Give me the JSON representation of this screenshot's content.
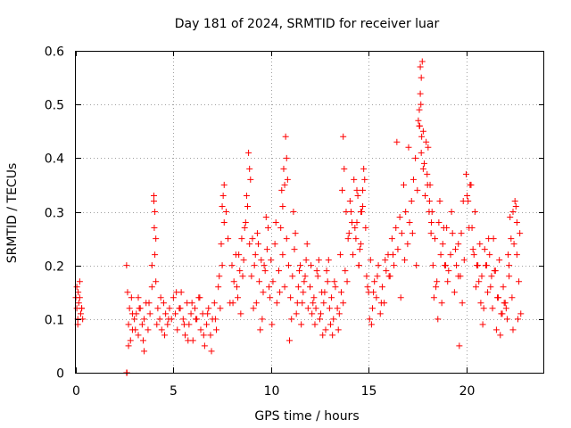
{
  "chart_data": {
    "type": "scatter",
    "title": "Day 181 of 2024, SRMTID for receiver luar",
    "xlabel": "GPS time / hours",
    "ylabel": "SRMTID / TECUs",
    "xlim": [
      0,
      24
    ],
    "ylim": [
      0,
      0.6
    ],
    "xticks": [
      0,
      5,
      10,
      15,
      20
    ],
    "xtick_labels": [
      "0",
      "5",
      "10",
      "15",
      "20"
    ],
    "yticks": [
      0,
      0.1,
      0.2,
      0.3,
      0.4,
      0.5,
      0.6
    ],
    "ytick_labels": [
      "0",
      "0.1",
      "0.2",
      "0.3",
      "0.4",
      "0.5",
      "0.6"
    ],
    "grid": true,
    "marker": "+",
    "color": "#ff0000",
    "series": [
      {
        "name": "SRMTID",
        "x": [
          0.0,
          0.05,
          0.1,
          0.12,
          0.15,
          0.2,
          0.25,
          0.3,
          0.35,
          0.05,
          0.1,
          0.2,
          0.3,
          2.6,
          2.65,
          2.7,
          2.75,
          2.8,
          2.85,
          2.9,
          3.0,
          3.1,
          3.2,
          3.3,
          3.4,
          3.5,
          3.6,
          3.7,
          3.8,
          3.9,
          4.0,
          4.05,
          4.1,
          4.2,
          4.3,
          4.4,
          4.5,
          4.6,
          4.7,
          4.8,
          4.9,
          2.7,
          2.9,
          3.2,
          3.5,
          3.9,
          4.0,
          4.02,
          4.05,
          4.1,
          3.05,
          3.25,
          3.45,
          3.75,
          4.15,
          4.35,
          4.55,
          4.75,
          5.0,
          5.1,
          5.2,
          5.3,
          5.4,
          5.5,
          5.6,
          5.7,
          5.8,
          5.9,
          6.0,
          6.1,
          6.2,
          6.3,
          6.4,
          6.5,
          6.6,
          6.7,
          6.8,
          6.9,
          7.0,
          7.1,
          7.2,
          7.3,
          7.4,
          7.5,
          7.6,
          7.7,
          7.8,
          7.9,
          5.15,
          5.35,
          5.55,
          5.75,
          5.95,
          6.15,
          6.35,
          6.55,
          6.75,
          6.95,
          7.15,
          7.35,
          7.45,
          7.5,
          7.55,
          7.6,
          8.0,
          8.1,
          8.2,
          8.3,
          8.4,
          8.5,
          8.6,
          8.7,
          8.8,
          8.9,
          9.0,
          9.1,
          9.2,
          9.3,
          9.4,
          9.5,
          9.6,
          9.7,
          9.8,
          9.9,
          8.05,
          8.25,
          8.45,
          8.65,
          8.75,
          8.85,
          8.9,
          8.95,
          9.15,
          9.35,
          9.55,
          9.75,
          9.95,
          8.35,
          8.55,
          9.05,
          9.25,
          9.45,
          9.65,
          9.85,
          10.0,
          10.1,
          10.2,
          10.3,
          10.4,
          10.5,
          10.6,
          10.7,
          10.8,
          10.9,
          11.0,
          11.1,
          11.2,
          11.3,
          11.4,
          11.5,
          11.6,
          11.7,
          11.8,
          11.9,
          10.05,
          10.25,
          10.45,
          10.55,
          10.65,
          10.75,
          10.8,
          10.85,
          10.95,
          11.05,
          11.15,
          11.25,
          11.45,
          11.65,
          11.85,
          10.6,
          10.7,
          11.35,
          11.55,
          11.75,
          12.0,
          12.1,
          12.2,
          12.3,
          12.4,
          12.5,
          12.6,
          12.7,
          12.8,
          12.9,
          13.0,
          13.1,
          13.2,
          13.3,
          13.4,
          13.5,
          13.6,
          13.7,
          13.8,
          13.9,
          12.05,
          12.25,
          12.45,
          12.65,
          12.85,
          13.05,
          13.25,
          13.45,
          13.55,
          13.65,
          13.7,
          13.75,
          13.85,
          13.95,
          12.15,
          12.35,
          12.55,
          12.75,
          12.95,
          13.15,
          14.0,
          14.1,
          14.2,
          14.3,
          14.4,
          14.5,
          14.6,
          14.7,
          14.8,
          14.9,
          15.0,
          15.1,
          15.2,
          15.3,
          15.4,
          15.5,
          15.6,
          15.7,
          15.8,
          15.9,
          14.05,
          14.15,
          14.25,
          14.35,
          14.45,
          14.55,
          14.65,
          14.75,
          14.85,
          14.95,
          15.05,
          15.25,
          15.45,
          15.65,
          15.85,
          14.6,
          14.7,
          14.4,
          14.5,
          15.15,
          16.0,
          16.1,
          16.2,
          16.3,
          16.4,
          16.5,
          16.6,
          16.7,
          16.8,
          16.9,
          17.0,
          17.1,
          17.2,
          17.3,
          17.4,
          17.5,
          17.6,
          17.7,
          17.8,
          17.9,
          16.05,
          16.25,
          16.45,
          16.65,
          16.85,
          17.05,
          17.25,
          17.45,
          17.55,
          17.65,
          17.7,
          17.75,
          17.8,
          17.85,
          17.95,
          17.6,
          17.62,
          17.65,
          17.68,
          17.72,
          18.0,
          18.1,
          18.2,
          18.3,
          18.4,
          18.5,
          18.6,
          18.7,
          18.8,
          18.9,
          19.0,
          19.1,
          19.2,
          19.3,
          19.4,
          19.5,
          19.6,
          19.7,
          19.8,
          19.9,
          18.05,
          18.15,
          18.25,
          18.35,
          18.45,
          18.55,
          18.65,
          18.75,
          18.85,
          18.95,
          19.05,
          19.25,
          19.45,
          19.65,
          19.75,
          19.85,
          18.02,
          18.12,
          18.22,
          19.6,
          20.0,
          20.1,
          20.2,
          20.3,
          20.4,
          20.5,
          20.6,
          20.7,
          20.8,
          20.9,
          21.0,
          21.1,
          21.2,
          21.3,
          21.4,
          21.5,
          21.6,
          21.7,
          21.8,
          21.9,
          20.05,
          20.15,
          20.25,
          20.35,
          20.45,
          20.55,
          20.65,
          20.75,
          20.85,
          20.95,
          21.05,
          21.15,
          21.25,
          21.35,
          21.45,
          21.55,
          21.65,
          21.75,
          21.85,
          21.95,
          22.0,
          22.1,
          22.2,
          22.3,
          22.4,
          22.5,
          22.6,
          22.7,
          22.8,
          22.05,
          22.15,
          22.25,
          22.35,
          22.45,
          22.55,
          22.65,
          22.75,
          22.2,
          22.4,
          22.6,
          2.6,
          2.62
        ],
        "y": [
          0.14,
          0.12,
          0.09,
          0.15,
          0.13,
          0.17,
          0.11,
          0.12,
          0.1,
          0.16,
          0.1,
          0.14,
          0.12,
          0.2,
          0.15,
          0.09,
          0.12,
          0.06,
          0.14,
          0.08,
          0.1,
          0.11,
          0.07,
          0.12,
          0.09,
          0.1,
          0.13,
          0.08,
          0.11,
          0.2,
          0.33,
          0.3,
          0.25,
          0.12,
          0.1,
          0.08,
          0.13,
          0.11,
          0.09,
          0.12,
          0.1,
          0.05,
          0.11,
          0.14,
          0.04,
          0.16,
          0.32,
          0.27,
          0.22,
          0.17,
          0.08,
          0.12,
          0.06,
          0.13,
          0.09,
          0.14,
          0.07,
          0.1,
          0.14,
          0.11,
          0.08,
          0.12,
          0.15,
          0.1,
          0.07,
          0.13,
          0.09,
          0.11,
          0.06,
          0.12,
          0.1,
          0.14,
          0.08,
          0.11,
          0.05,
          0.09,
          0.12,
          0.07,
          0.1,
          0.13,
          0.08,
          0.16,
          0.12,
          0.2,
          0.35,
          0.3,
          0.25,
          0.13,
          0.15,
          0.12,
          0.09,
          0.06,
          0.13,
          0.1,
          0.14,
          0.07,
          0.11,
          0.04,
          0.1,
          0.18,
          0.24,
          0.31,
          0.33,
          0.28,
          0.2,
          0.17,
          0.22,
          0.14,
          0.19,
          0.25,
          0.21,
          0.28,
          0.31,
          0.24,
          0.18,
          0.12,
          0.22,
          0.26,
          0.17,
          0.21,
          0.15,
          0.19,
          0.23,
          0.16,
          0.13,
          0.16,
          0.11,
          0.27,
          0.33,
          0.41,
          0.38,
          0.36,
          0.2,
          0.24,
          0.1,
          0.29,
          0.14,
          0.22,
          0.18,
          0.25,
          0.13,
          0.08,
          0.2,
          0.27,
          0.21,
          0.17,
          0.24,
          0.13,
          0.19,
          0.27,
          0.22,
          0.16,
          0.25,
          0.2,
          0.14,
          0.18,
          0.23,
          0.11,
          0.16,
          0.2,
          0.13,
          0.17,
          0.21,
          0.12,
          0.09,
          0.28,
          0.15,
          0.34,
          0.38,
          0.44,
          0.4,
          0.36,
          0.06,
          0.1,
          0.3,
          0.26,
          0.19,
          0.15,
          0.24,
          0.31,
          0.35,
          0.13,
          0.09,
          0.18,
          0.16,
          0.11,
          0.14,
          0.12,
          0.18,
          0.1,
          0.15,
          0.13,
          0.08,
          0.17,
          0.12,
          0.14,
          0.1,
          0.16,
          0.12,
          0.11,
          0.15,
          0.13,
          0.19,
          0.17,
          0.2,
          0.09,
          0.21,
          0.07,
          0.19,
          0.09,
          0.17,
          0.08,
          0.22,
          0.34,
          0.44,
          0.38,
          0.3,
          0.25,
          0.13,
          0.19,
          0.11,
          0.15,
          0.21,
          0.07,
          0.26,
          0.3,
          0.22,
          0.27,
          0.34,
          0.2,
          0.24,
          0.31,
          0.36,
          0.18,
          0.15,
          0.21,
          0.12,
          0.17,
          0.14,
          0.2,
          0.11,
          0.16,
          0.13,
          0.19,
          0.32,
          0.28,
          0.36,
          0.25,
          0.33,
          0.23,
          0.3,
          0.38,
          0.27,
          0.16,
          0.1,
          0.15,
          0.18,
          0.13,
          0.21,
          0.3,
          0.34,
          0.28,
          0.2,
          0.09,
          0.22,
          0.18,
          0.25,
          0.2,
          0.27,
          0.23,
          0.29,
          0.26,
          0.35,
          0.3,
          0.24,
          0.28,
          0.32,
          0.36,
          0.4,
          0.34,
          0.46,
          0.41,
          0.38,
          0.33,
          0.18,
          0.22,
          0.43,
          0.14,
          0.21,
          0.42,
          0.26,
          0.2,
          0.47,
          0.52,
          0.55,
          0.58,
          0.45,
          0.39,
          0.43,
          0.49,
          0.46,
          0.57,
          0.5,
          0.44,
          0.37,
          0.3,
          0.26,
          0.2,
          0.25,
          0.17,
          0.28,
          0.22,
          0.24,
          0.2,
          0.27,
          0.19,
          0.22,
          0.26,
          0.15,
          0.2,
          0.24,
          0.18,
          0.13,
          0.21,
          0.42,
          0.35,
          0.3,
          0.14,
          0.16,
          0.1,
          0.32,
          0.13,
          0.27,
          0.2,
          0.17,
          0.3,
          0.23,
          0.05,
          0.26,
          0.32,
          0.35,
          0.32,
          0.28,
          0.18,
          0.37,
          0.32,
          0.35,
          0.27,
          0.22,
          0.16,
          0.2,
          0.24,
          0.18,
          0.12,
          0.2,
          0.15,
          0.22,
          0.18,
          0.25,
          0.19,
          0.14,
          0.21,
          0.11,
          0.16,
          0.33,
          0.27,
          0.35,
          0.23,
          0.3,
          0.2,
          0.17,
          0.13,
          0.09,
          0.23,
          0.2,
          0.25,
          0.16,
          0.12,
          0.19,
          0.08,
          0.14,
          0.07,
          0.11,
          0.13,
          0.13,
          0.1,
          0.2,
          0.25,
          0.3,
          0.32,
          0.28,
          0.17,
          0.11,
          0.12,
          0.22,
          0.29,
          0.14,
          0.24,
          0.31,
          0.1,
          0.26,
          0.18,
          0.08,
          0.22,
          0.0,
          0.0
        ]
      }
    ]
  }
}
